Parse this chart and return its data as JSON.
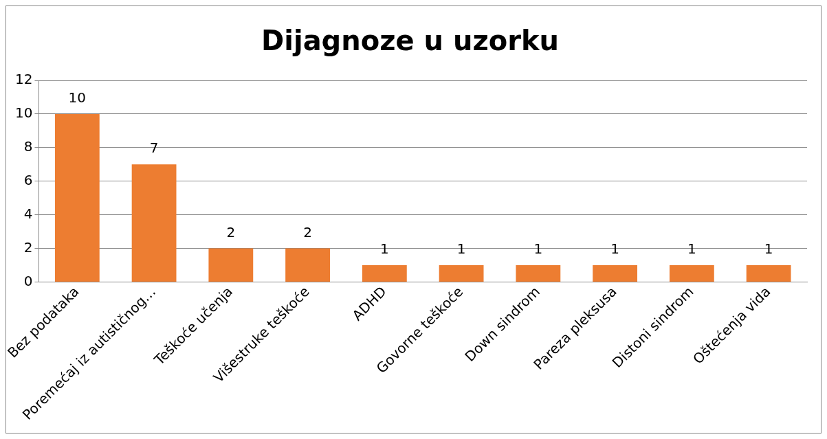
{
  "chart_data": {
    "type": "bar",
    "title": "Dijagnoze u uzorku",
    "categories": [
      "Bez podataka",
      "Poremećaj iz autističnog…",
      "Teškoće učenja",
      "Višestruke teškoće",
      "ADHD",
      "Govorne teškoće",
      "Down sindrom",
      "Pareza pleksusa",
      "Distoni sindrom",
      "Oštećenja vida"
    ],
    "values": [
      10,
      7,
      2,
      2,
      1,
      1,
      1,
      1,
      1,
      1
    ],
    "color": "#ed7d31",
    "ylim": [
      0,
      12
    ],
    "yticks": [
      0,
      2,
      4,
      6,
      8,
      10,
      12
    ],
    "grid": "y",
    "legend": false,
    "data_labels": true
  }
}
